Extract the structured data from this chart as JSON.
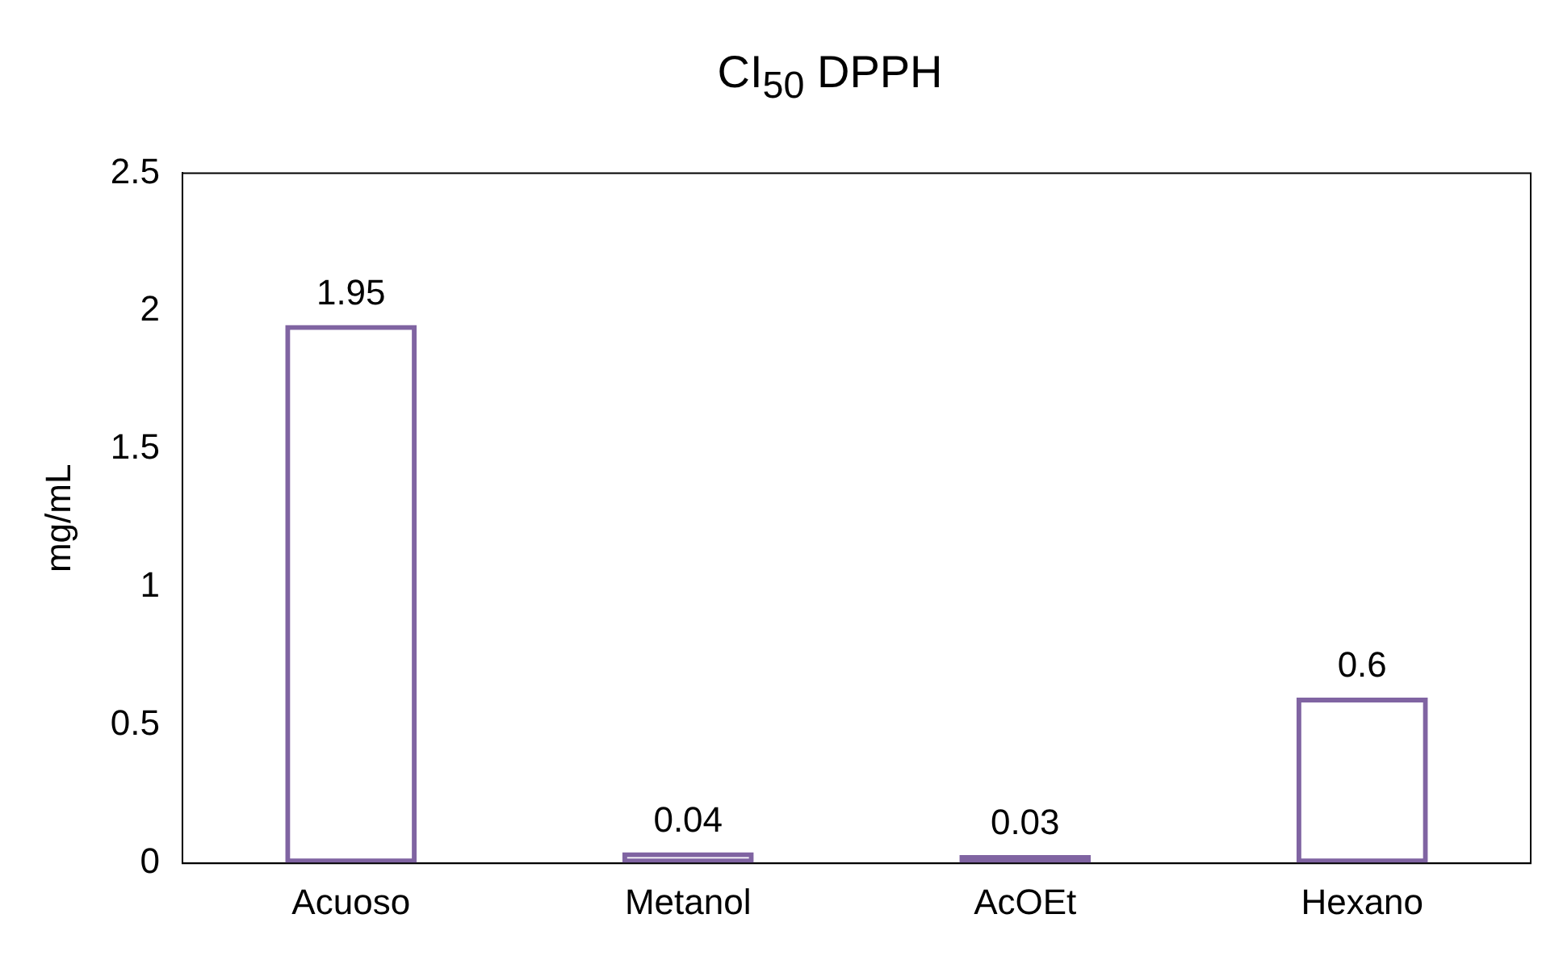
{
  "chart_data": {
    "type": "bar",
    "title": "CI$_{50}$ DPPH",
    "ylabel": "mg/mL",
    "categories": [
      "Acuoso",
      "Metanol",
      "AcOEt",
      "Hexano"
    ],
    "values": [
      1.95,
      0.04,
      0.03,
      0.6
    ],
    "color": "#8064a2",
    "ylim": [
      0,
      2.5
    ],
    "yticks": [
      0,
      0.5,
      1,
      1.5,
      2,
      2.5
    ],
    "grid": false,
    "legend": false,
    "data_labels": true
  }
}
